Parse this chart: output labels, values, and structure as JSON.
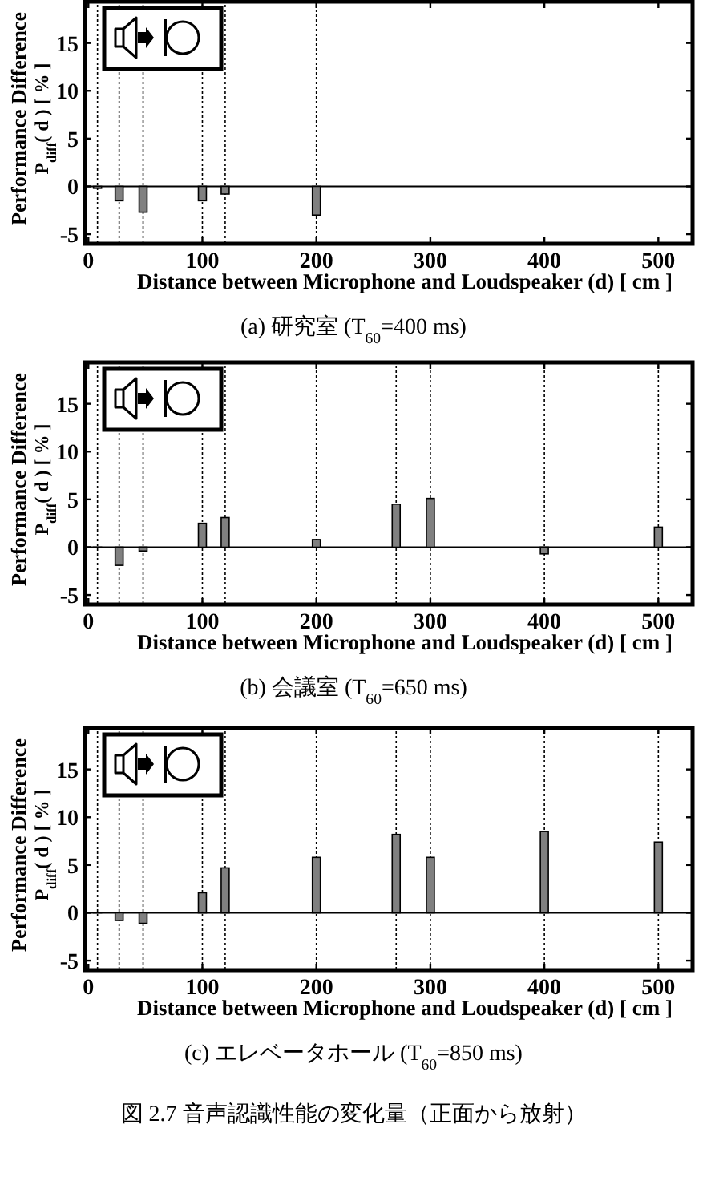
{
  "chart_data": [
    {
      "type": "bar",
      "title": "(a) 研究室 (T$_{60}$=400 ms)",
      "xlabel": "Distance between Microphone and Loudspeaker (d) [ cm ]",
      "ylabel": "Performance Difference\nP$_{diff}$( d ) [ % ]",
      "x": [
        8,
        27,
        48,
        100,
        120,
        200
      ],
      "values": [
        -0.2,
        -1.5,
        -2.7,
        -1.5,
        -0.8,
        -3.0
      ],
      "color": "#808080",
      "xlim": [
        -3,
        530
      ],
      "ylim": [
        -6,
        19.5
      ],
      "xticks": [
        0,
        100,
        200,
        300,
        400,
        500
      ],
      "yticks": [
        -5,
        0,
        5,
        10,
        15
      ],
      "ref_lines": [
        {
          "axis": "x",
          "value": 8,
          "line_style": "dotted"
        },
        {
          "axis": "x",
          "value": 27,
          "line_style": "dotted"
        },
        {
          "axis": "x",
          "value": 48,
          "line_style": "dotted"
        },
        {
          "axis": "x",
          "value": 100,
          "line_style": "dotted"
        },
        {
          "axis": "x",
          "value": 120,
          "line_style": "dotted"
        },
        {
          "axis": "x",
          "value": 200,
          "line_style": "dotted"
        },
        {
          "axis": "y",
          "value": 0,
          "line_style": "solid"
        }
      ]
    },
    {
      "type": "bar",
      "title": "(b) 会議室 (T$_{60}$=650 ms)",
      "xlabel": "Distance between Microphone and Loudspeaker (d) [ cm ]",
      "ylabel": "Performance Difference\nP$_{diff}$( d ) [ % ]",
      "x": [
        8,
        27,
        48,
        100,
        120,
        200,
        270,
        300,
        400,
        500
      ],
      "values": [
        0,
        -1.9,
        -0.4,
        2.5,
        3.1,
        0.8,
        4.5,
        5.1,
        -0.7,
        2.1
      ],
      "color": "#808080",
      "xlim": [
        -3,
        530
      ],
      "ylim": [
        -6,
        19.5
      ],
      "xticks": [
        0,
        100,
        200,
        300,
        400,
        500
      ],
      "yticks": [
        -5,
        0,
        5,
        10,
        15
      ],
      "ref_lines": [
        {
          "axis": "x",
          "value": 8,
          "line_style": "dotted"
        },
        {
          "axis": "x",
          "value": 27,
          "line_style": "dotted"
        },
        {
          "axis": "x",
          "value": 48,
          "line_style": "dotted"
        },
        {
          "axis": "x",
          "value": 100,
          "line_style": "dotted"
        },
        {
          "axis": "x",
          "value": 120,
          "line_style": "dotted"
        },
        {
          "axis": "x",
          "value": 200,
          "line_style": "dotted"
        },
        {
          "axis": "x",
          "value": 270,
          "line_style": "dotted"
        },
        {
          "axis": "x",
          "value": 300,
          "line_style": "dotted"
        },
        {
          "axis": "x",
          "value": 400,
          "line_style": "dotted"
        },
        {
          "axis": "x",
          "value": 500,
          "line_style": "dotted"
        },
        {
          "axis": "y",
          "value": 0,
          "line_style": "solid"
        }
      ]
    },
    {
      "type": "bar",
      "title": "(c) エレベータホール (T$_{60}$=850 ms)",
      "xlabel": "Distance between Microphone and Loudspeaker (d) [ cm ]",
      "ylabel": "Performance Difference\nP$_{diff}$( d ) [ % ]",
      "x": [
        8,
        27,
        48,
        100,
        120,
        200,
        270,
        300,
        400,
        500
      ],
      "values": [
        0,
        -0.8,
        -1.1,
        2.1,
        4.7,
        5.8,
        8.2,
        5.8,
        8.5,
        7.4
      ],
      "color": "#808080",
      "xlim": [
        -3,
        530
      ],
      "ylim": [
        -6,
        19.5
      ],
      "xticks": [
        0,
        100,
        200,
        300,
        400,
        500
      ],
      "yticks": [
        -5,
        0,
        5,
        10,
        15
      ],
      "ref_lines": [
        {
          "axis": "x",
          "value": 8,
          "line_style": "dotted"
        },
        {
          "axis": "x",
          "value": 27,
          "line_style": "dotted"
        },
        {
          "axis": "x",
          "value": 48,
          "line_style": "dotted"
        },
        {
          "axis": "x",
          "value": 100,
          "line_style": "dotted"
        },
        {
          "axis": "x",
          "value": 120,
          "line_style": "dotted"
        },
        {
          "axis": "x",
          "value": 200,
          "line_style": "dotted"
        },
        {
          "axis": "x",
          "value": 270,
          "line_style": "dotted"
        },
        {
          "axis": "x",
          "value": 300,
          "line_style": "dotted"
        },
        {
          "axis": "x",
          "value": 400,
          "line_style": "dotted"
        },
        {
          "axis": "x",
          "value": 500,
          "line_style": "dotted"
        },
        {
          "axis": "y",
          "value": 0,
          "line_style": "solid"
        }
      ],
      "annotations": [
        "図 2.7 音声認識性能の変化量（正面から放射）"
      ]
    }
  ]
}
